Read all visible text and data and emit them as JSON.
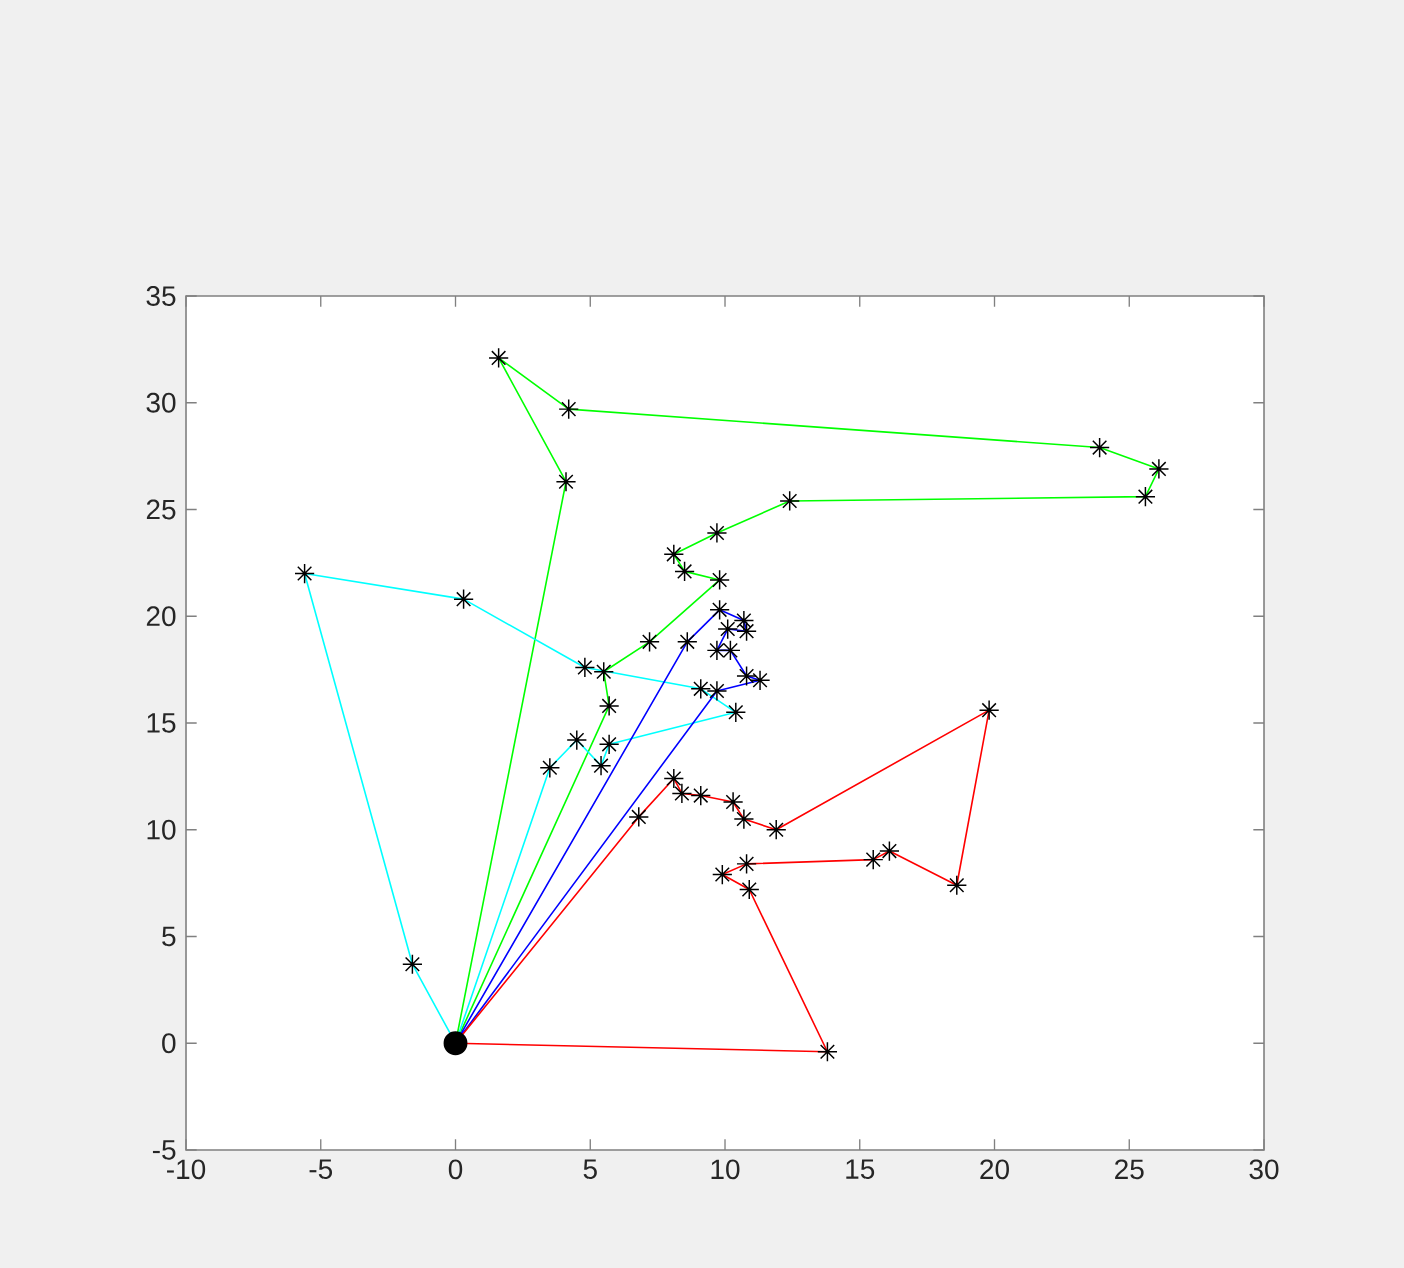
{
  "chart_data": {
    "type": "line",
    "xlim": [
      -10,
      30
    ],
    "ylim": [
      -5,
      35
    ],
    "xticks": [
      -10,
      -5,
      0,
      5,
      10,
      15,
      20,
      25,
      30
    ],
    "yticks": [
      -5,
      0,
      5,
      10,
      15,
      20,
      25,
      30,
      35
    ],
    "series": [
      {
        "color": "#00ff00",
        "marker": "none",
        "x": [
          0,
          5.7,
          5.5,
          7.2,
          9.8,
          8.5,
          8.1,
          9.7,
          12.4,
          25.6,
          26.1,
          23.9,
          4.2,
          1.6,
          4.1,
          0
        ],
        "values": [
          0,
          15.8,
          17.4,
          18.8,
          21.7,
          22.1,
          22.9,
          23.9,
          25.4,
          25.6,
          26.9,
          27.9,
          29.7,
          32.1,
          26.3,
          0
        ]
      },
      {
        "color": "#00ffff",
        "marker": "none",
        "x": [
          0,
          -1.6,
          -5.6,
          0.3,
          4.8,
          9.1,
          10.4,
          5.7,
          5.4,
          4.5,
          3.5,
          0
        ],
        "values": [
          0,
          3.7,
          22.0,
          20.8,
          17.6,
          16.6,
          15.5,
          14.0,
          13.0,
          14.2,
          12.9,
          0
        ]
      },
      {
        "color": "#0000ff",
        "marker": "none",
        "x": [
          0,
          8.6,
          9.8,
          10.7,
          10.8,
          10.1,
          9.7,
          10.2,
          10.8,
          11.3,
          9.7,
          0
        ],
        "values": [
          0,
          18.8,
          20.3,
          19.8,
          19.3,
          19.4,
          18.4,
          18.4,
          17.2,
          17.0,
          16.5,
          0
        ]
      },
      {
        "color": "#ff0000",
        "marker": "none",
        "x": [
          0,
          6.8,
          8.1,
          8.4,
          9.1,
          10.3,
          10.7,
          11.9,
          19.8,
          18.6,
          16.1,
          15.5,
          10.8,
          9.9,
          10.9,
          13.8,
          0
        ],
        "values": [
          0,
          10.6,
          12.4,
          11.7,
          11.6,
          11.3,
          10.5,
          10.0,
          15.6,
          7.4,
          9.0,
          8.6,
          8.4,
          7.9,
          7.2,
          -0.4,
          0
        ]
      },
      {
        "type": "scatter",
        "color": "#000000",
        "marker": "cross",
        "x": [
          5.7,
          5.5,
          7.2,
          9.8,
          8.5,
          8.1,
          9.7,
          12.4,
          25.6,
          26.1,
          23.9,
          4.2,
          1.6,
          4.1,
          -1.6,
          -5.6,
          0.3,
          4.8,
          9.1,
          10.4,
          5.7,
          5.4,
          4.5,
          3.5,
          8.6,
          9.8,
          10.7,
          10.8,
          10.1,
          9.7,
          10.2,
          10.8,
          11.3,
          9.7,
          6.8,
          8.1,
          8.4,
          9.1,
          10.3,
          10.7,
          11.9,
          19.8,
          18.6,
          16.1,
          15.5,
          10.8,
          9.9,
          10.9,
          13.8
        ],
        "values": [
          15.8,
          17.4,
          18.8,
          21.7,
          22.1,
          22.9,
          23.9,
          25.4,
          25.6,
          26.9,
          27.9,
          29.7,
          32.1,
          26.3,
          3.7,
          22.0,
          20.8,
          17.6,
          16.6,
          15.5,
          14.0,
          13.0,
          14.2,
          12.9,
          18.8,
          20.3,
          19.8,
          19.3,
          19.4,
          18.4,
          18.4,
          17.2,
          17.0,
          16.5,
          10.6,
          12.4,
          11.7,
          11.6,
          11.3,
          10.5,
          10.0,
          15.6,
          7.4,
          9.0,
          8.6,
          8.4,
          7.9,
          7.2,
          -0.4
        ]
      },
      {
        "type": "scatter",
        "color": "#000000",
        "marker": "circle",
        "x": [
          0
        ],
        "values": [
          0
        ]
      }
    ]
  }
}
